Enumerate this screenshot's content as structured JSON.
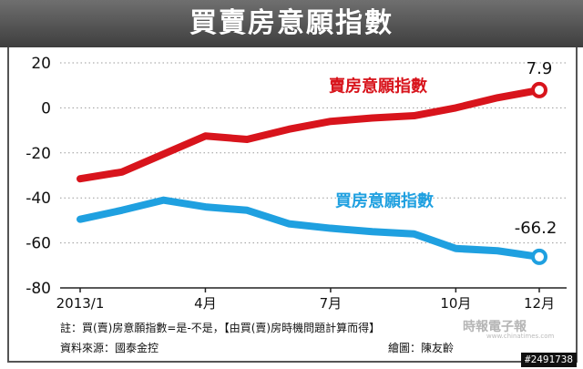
{
  "header": {
    "title": "買賣房意願指數"
  },
  "chart_data": {
    "type": "line",
    "x": [
      "2013/1",
      "2013/2",
      "2013/3",
      "2013/4",
      "2013/5",
      "2013/6",
      "2013/7",
      "2013/8",
      "2013/9",
      "2013/10",
      "2013/11",
      "2013/12"
    ],
    "xticks": [
      "2013/1",
      "4月",
      "7月",
      "10月",
      "12月"
    ],
    "ylim": [
      -80,
      20
    ],
    "yticks": [
      20,
      0,
      -20,
      -40,
      -60,
      -80
    ],
    "series": [
      {
        "name": "賣房意願指數",
        "color": "#d8141c",
        "values": [
          -31.5,
          -28.5,
          -20.5,
          -12.5,
          -14,
          -9.5,
          -6,
          -4.5,
          -3.5,
          0,
          4.5,
          7.9
        ]
      },
      {
        "name": "買房意願指數",
        "color": "#1fa0e0",
        "values": [
          -49.5,
          -45.5,
          -41,
          -44,
          -45.5,
          -51.5,
          -53.5,
          -55,
          -56,
          -62.5,
          -63.5,
          -66.2
        ]
      }
    ],
    "annotations": [
      {
        "series": "賣房意願指數",
        "label": "7.9"
      },
      {
        "series": "買房意願指數",
        "label": "-66.2"
      }
    ]
  },
  "footer": {
    "note": "註：買(賣)房意願指數=是-不是，【由買(賣)房時機問題計算而得】",
    "source": "資料來源：國泰金控",
    "credit": "繪圖：陳友齡",
    "watermark": "時報電子報",
    "watermark_url": "www.chinatimes.com",
    "image_id": "#2491738"
  }
}
